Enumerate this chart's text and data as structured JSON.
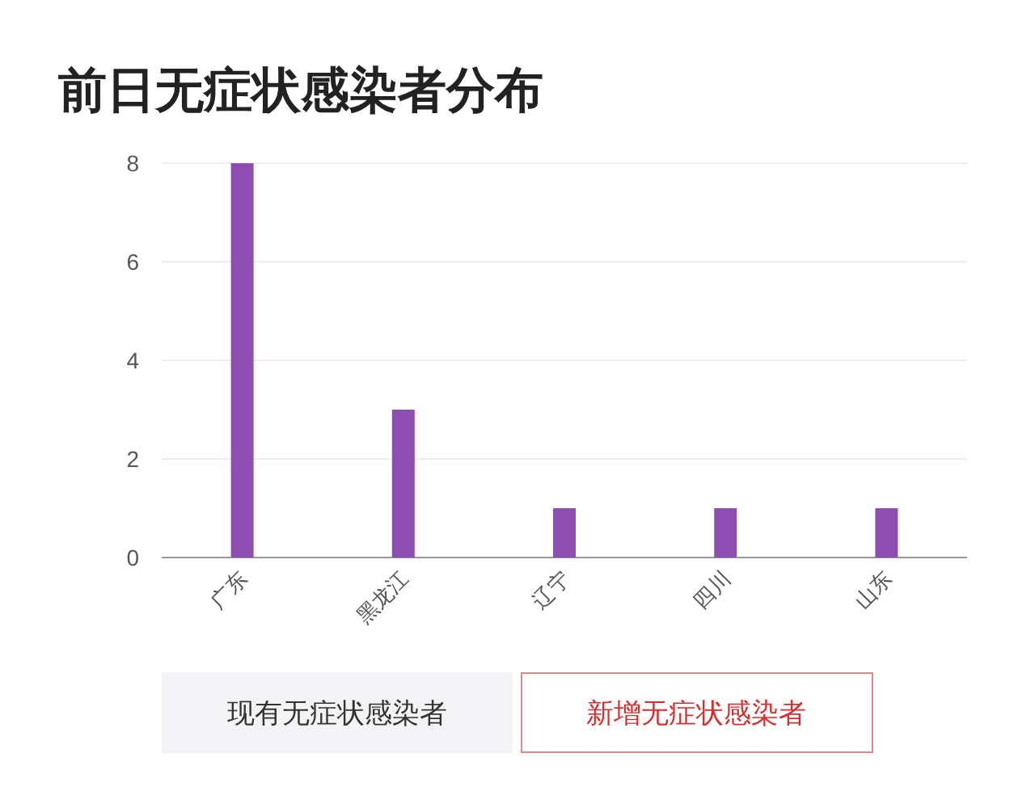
{
  "chart_data": {
    "type": "bar",
    "title": "前日无症状感染者分布",
    "categories": [
      "广东",
      "黑龙江",
      "辽宁",
      "四川",
      "山东"
    ],
    "values": [
      8,
      3,
      1,
      1,
      1
    ],
    "color": "#8e4db0",
    "ylim": [
      0,
      8
    ],
    "yticks": [
      0,
      2,
      4,
      6,
      8
    ],
    "grid": "y",
    "annotations": [
      "现有无症状感染者",
      "新增无症状感染者"
    ]
  }
}
